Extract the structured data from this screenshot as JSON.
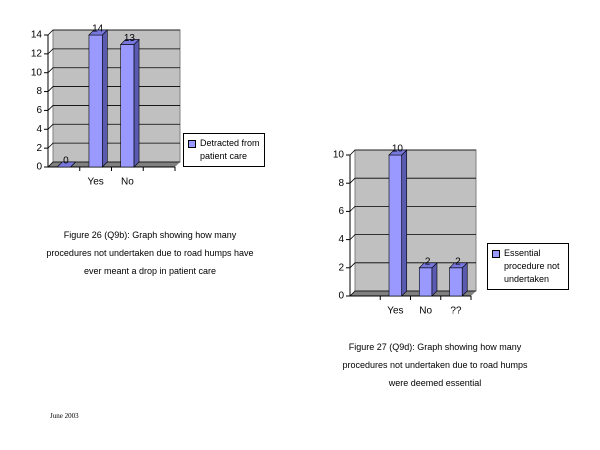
{
  "chart_data": [
    {
      "type": "bar",
      "categories": [
        null,
        "Yes",
        "No",
        null
      ],
      "values": [
        0,
        14,
        13,
        null
      ],
      "series_name": "Detracted from patient care",
      "color": "#9999ff",
      "ylim": [
        0,
        14
      ],
      "yticks": [
        0,
        2,
        4,
        6,
        8,
        10,
        12,
        14
      ],
      "grid": true,
      "caption": "Figure 26 (Q9b):  Graph showing how many procedures not undertaken due to road humps have ever meant a drop in patient care"
    },
    {
      "type": "bar",
      "categories": [
        null,
        "Yes",
        "No",
        "??"
      ],
      "values": [
        null,
        10,
        2,
        2
      ],
      "series_name": "Essential procedure not undertaken",
      "color": "#9999ff",
      "ylim": [
        0,
        10
      ],
      "yticks": [
        0,
        2,
        4,
        6,
        8,
        10
      ],
      "grid": true,
      "caption": "Figure 27 (Q9d):  Graph showing how many procedures not undertaken due to road humps were deemed essential"
    }
  ],
  "footer": "June 2003"
}
